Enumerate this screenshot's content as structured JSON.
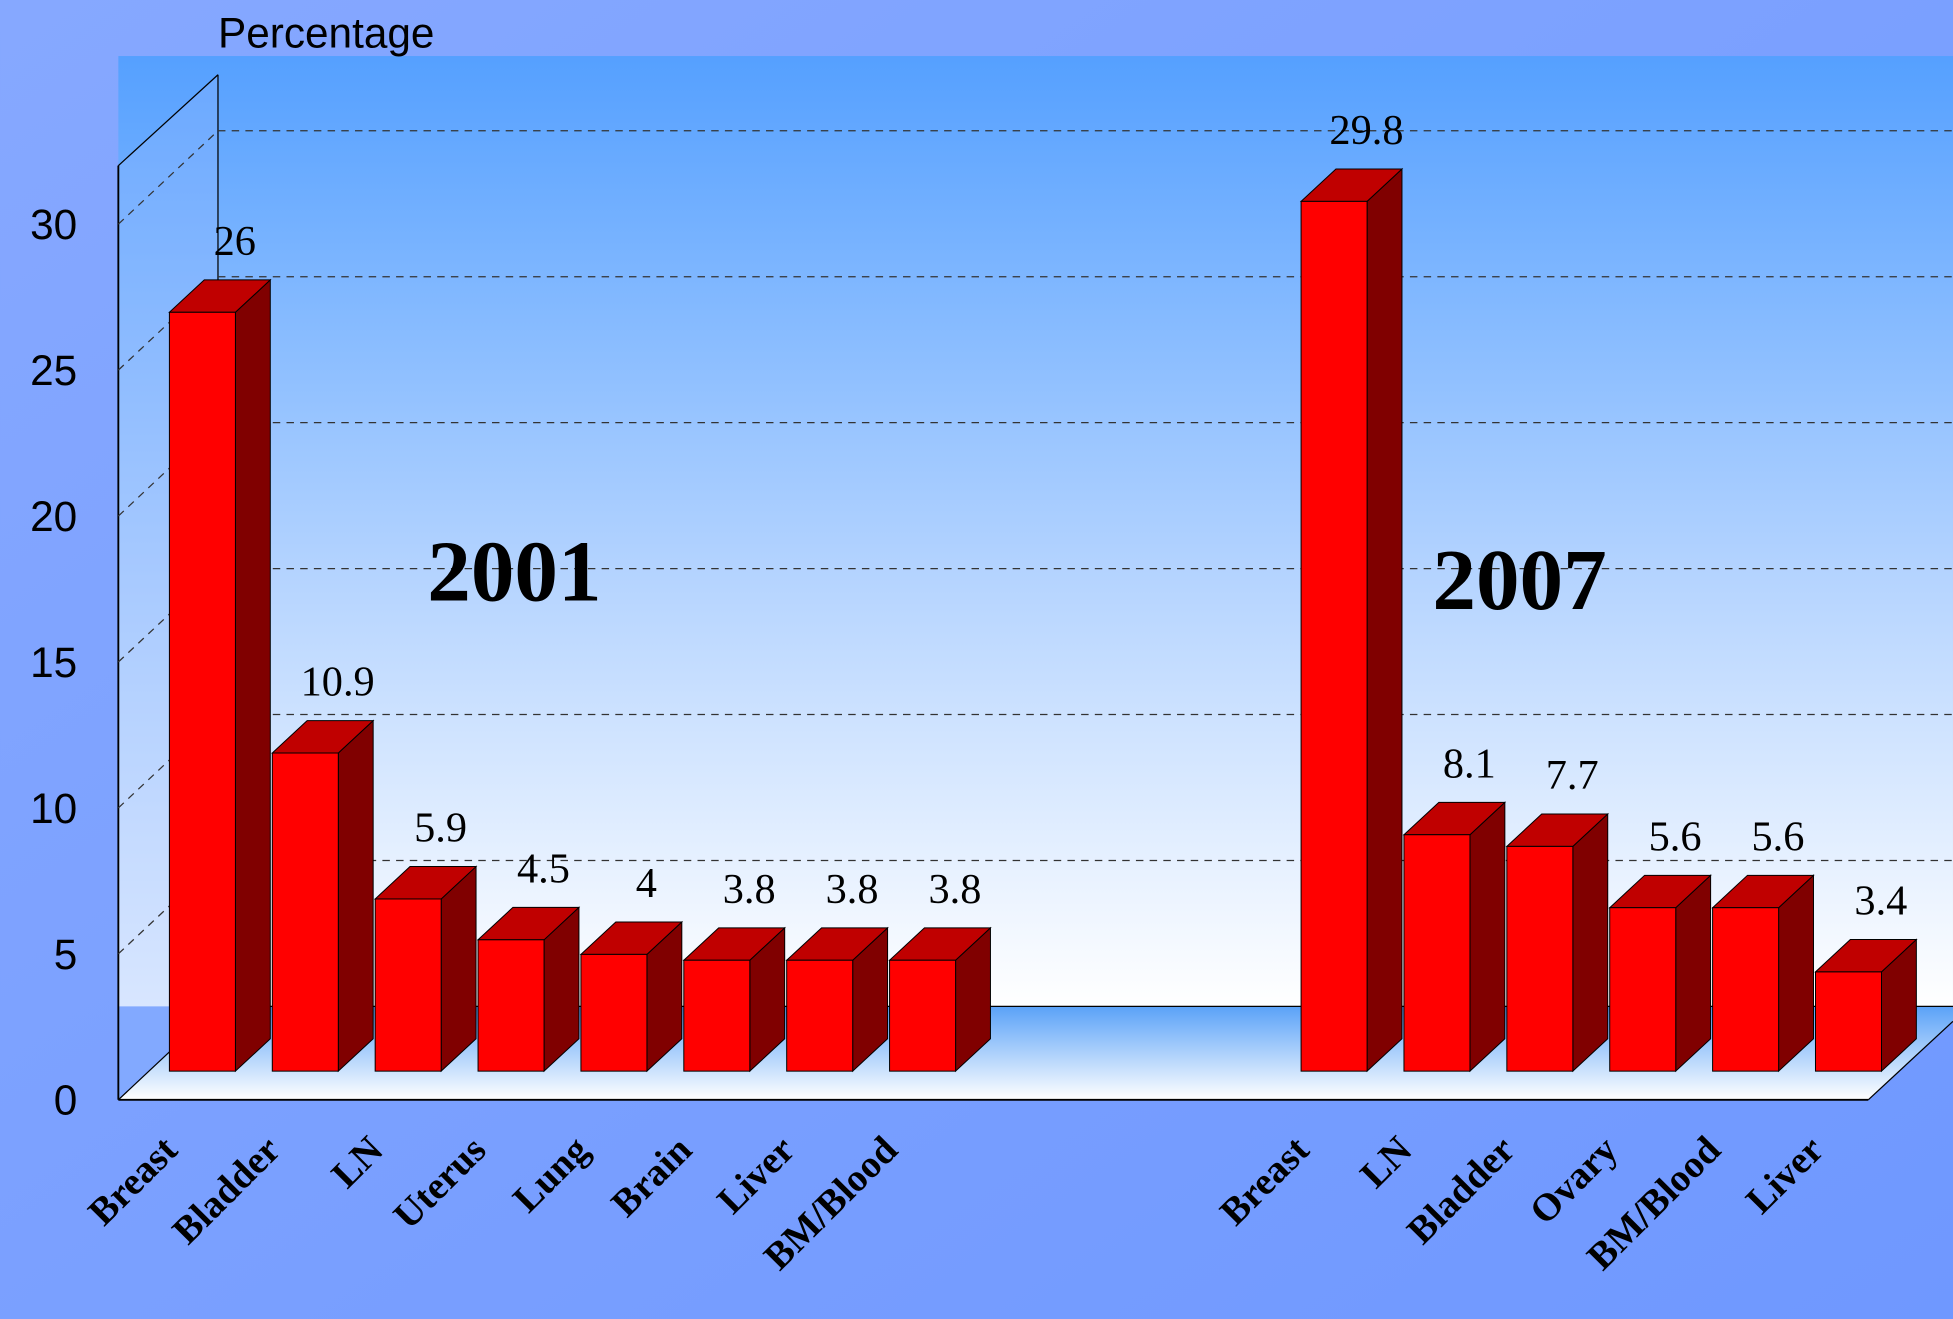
{
  "chart_data": {
    "type": "bar",
    "y_label": "Percentage",
    "groups": [
      {
        "name": "2001",
        "categories": [
          "Breast",
          "Bladder",
          "LN",
          "Uterus",
          "Lung",
          "Brain",
          "Liver",
          "BM/Blood"
        ],
        "values": [
          26,
          10.9,
          5.9,
          4.5,
          4,
          3.8,
          3.8,
          3.8
        ]
      },
      {
        "name": "2007",
        "categories": [
          "Breast",
          "LN",
          "Bladder",
          "Ovary",
          "BM/Blood",
          "Liver"
        ],
        "values": [
          29.8,
          8.1,
          7.7,
          5.6,
          5.6,
          3.4
        ]
      }
    ],
    "color": "#ff0000",
    "ylim": [
      0,
      32
    ],
    "yticks": [
      0,
      5,
      10,
      15,
      20,
      25,
      30
    ],
    "grid": true
  }
}
